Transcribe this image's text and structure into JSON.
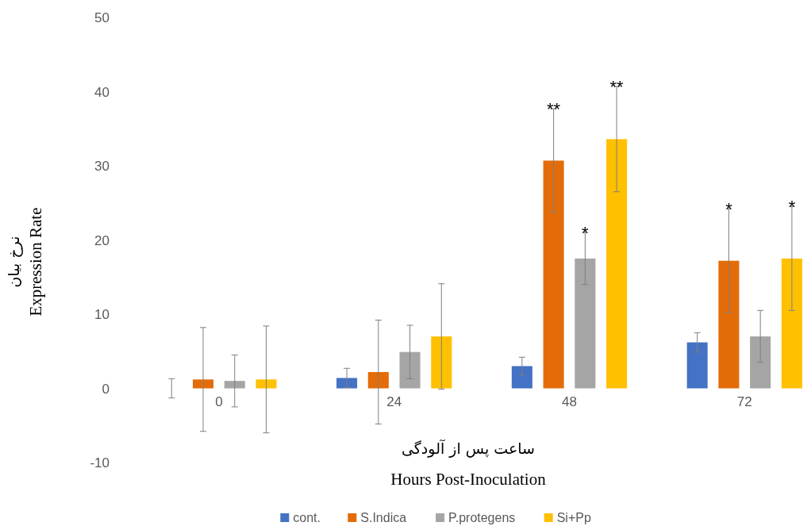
{
  "chart_data": {
    "type": "bar",
    "xlabel": "Hours Post-Inoculation",
    "ylabel": "Expression Rate",
    "annotations": [
      "ساعت پس از آلودگی",
      "نرخ بیان"
    ],
    "categories": [
      "0",
      "24",
      "48",
      "72"
    ],
    "series": [
      {
        "name": "cont.",
        "color": "#4472c4",
        "values": [
          0,
          1.4,
          3.0,
          6.2
        ],
        "errors": [
          1.3,
          1.3,
          1.2,
          1.3
        ]
      },
      {
        "name": "S.Indica",
        "color": "#e36c09",
        "values": [
          1.2,
          2.2,
          30.7,
          17.2
        ],
        "errors": [
          7.0,
          7.0,
          7.0,
          7.0
        ],
        "value_labels": [
          null,
          null,
          "**",
          "*"
        ]
      },
      {
        "name": "P.protegens",
        "color": "#a5a5a5",
        "values": [
          1.0,
          4.9,
          17.5,
          7.0
        ],
        "errors": [
          3.5,
          3.6,
          3.5,
          3.5
        ],
        "value_labels": [
          null,
          null,
          "*",
          null
        ]
      },
      {
        "name": "Si+Pp",
        "color": "#ffc000",
        "values": [
          1.2,
          7.0,
          33.6,
          17.5
        ],
        "errors": [
          7.2,
          7.1,
          7.1,
          7.0
        ],
        "value_labels": [
          null,
          null,
          "**",
          "*"
        ]
      }
    ],
    "ylim": [
      -10,
      50
    ],
    "yticks": [
      -10,
      0,
      10,
      20,
      30,
      40,
      50
    ],
    "legend": "bottom"
  }
}
